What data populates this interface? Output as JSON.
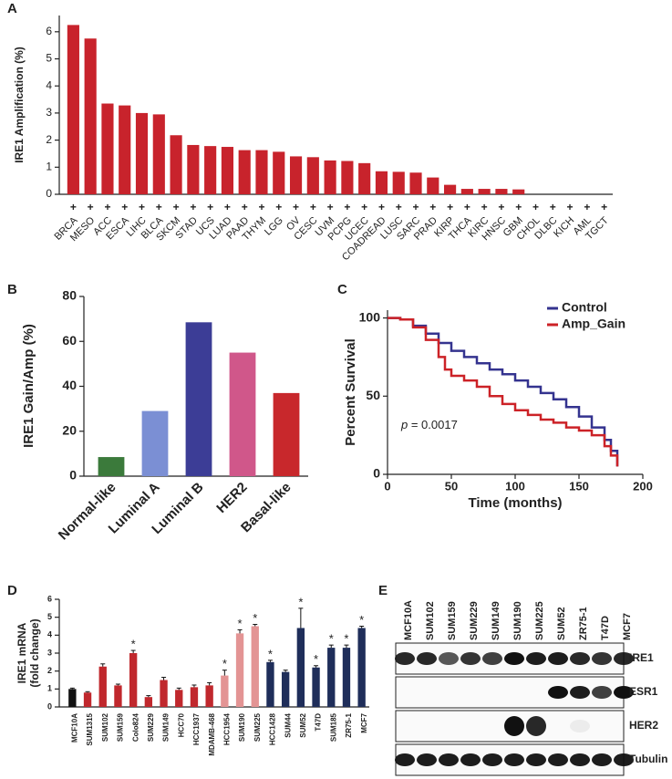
{
  "chart_data": [
    {
      "type": "bar",
      "panel_label": "A",
      "ylabel": "IRE1 Amplification (%)",
      "color": "#c8232c",
      "marker_label": "+",
      "categories": [
        "BRCA",
        "MESO",
        "ACC",
        "ESCA",
        "LIHC",
        "BLCA",
        "SKCM",
        "STAD",
        "UCS",
        "LUAD",
        "PAAD",
        "THYM",
        "LGG",
        "OV",
        "CESC",
        "UVM",
        "PCPG",
        "UCEC",
        "COADREAD",
        "LUSC",
        "SARC",
        "PRAD",
        "KIRP",
        "THCA",
        "KIRC",
        "HNSC",
        "GBM",
        "CHOL",
        "DLBC",
        "KICH",
        "AML",
        "TGCT"
      ],
      "values": [
        6.25,
        5.75,
        3.35,
        3.28,
        3.0,
        2.95,
        2.18,
        1.82,
        1.78,
        1.75,
        1.63,
        1.63,
        1.57,
        1.4,
        1.37,
        1.25,
        1.23,
        1.15,
        0.85,
        0.83,
        0.8,
        0.62,
        0.35,
        0.2,
        0.2,
        0.2,
        0.18,
        0,
        0,
        0,
        0,
        0
      ],
      "ylim": [
        0,
        6.6
      ],
      "yticks": [
        0,
        1,
        2,
        3,
        4,
        5,
        6
      ]
    },
    {
      "type": "bar",
      "panel_label": "B",
      "ylabel": "IRE1 Gain/Amp (%)",
      "categories": [
        "Normal-like",
        "Luminal A",
        "Luminal B",
        "HER2",
        "Basal-like"
      ],
      "values": [
        8.5,
        29,
        68.5,
        55,
        37
      ],
      "colors": [
        "#3b7a3b",
        "#7b8fd4",
        "#3c3d96",
        "#d0578a",
        "#c8282c"
      ],
      "ylim": [
        0,
        80
      ],
      "yticks": [
        0,
        20,
        40,
        60,
        80
      ]
    },
    {
      "type": "line",
      "panel_label": "C",
      "xlabel": "Time (months)",
      "ylabel": "Percent Survival",
      "annotation": {
        "italic": "p",
        "text": "= 0.0017"
      },
      "series": [
        {
          "name": "Control",
          "color": "#34338f",
          "x": [
            0,
            10,
            20,
            30,
            40,
            50,
            60,
            70,
            80,
            90,
            100,
            110,
            120,
            130,
            140,
            150,
            160,
            170,
            175,
            180
          ],
          "values": [
            100,
            99,
            95,
            90,
            84,
            79,
            75,
            71,
            67,
            64,
            60,
            56,
            52,
            48,
            43,
            37,
            30,
            22,
            15,
            5
          ]
        },
        {
          "name": "Amp_Gain",
          "color": "#cc2227",
          "x": [
            0,
            10,
            20,
            30,
            40,
            45,
            50,
            60,
            70,
            80,
            90,
            100,
            110,
            120,
            130,
            140,
            150,
            160,
            170,
            175,
            180
          ],
          "values": [
            100,
            99,
            94,
            86,
            75,
            67,
            63,
            60,
            56,
            50,
            45,
            41,
            38,
            35,
            33,
            30,
            28,
            25,
            18,
            12,
            5
          ]
        }
      ],
      "xlim": [
        0,
        200
      ],
      "xticks": [
        0,
        50,
        100,
        150,
        200
      ],
      "ylim": [
        0,
        105
      ],
      "yticks": [
        0,
        50,
        100
      ]
    },
    {
      "type": "errorbar",
      "panel_label": "D",
      "ylabel": [
        "IRE1 mRNA",
        "(fold change)"
      ],
      "categories": [
        "MCF10A",
        "SUM1315",
        "SUM102",
        "SUM159",
        "Colo824",
        "SUM229",
        "SUM149",
        "HCC70",
        "HCC1937",
        "MDAMB-468",
        "HCC1954",
        "SUM190",
        "SUM225",
        "HCC1428",
        "SUM44",
        "SUM52",
        "T47D",
        "SUM185",
        "ZR75-1",
        "MCF7"
      ],
      "values": [
        1.0,
        0.8,
        2.25,
        1.2,
        3.0,
        0.55,
        1.5,
        0.95,
        1.1,
        1.2,
        1.75,
        4.1,
        4.5,
        2.5,
        1.95,
        4.4,
        2.2,
        3.3,
        3.3,
        4.4
      ],
      "errors": [
        0.05,
        0.05,
        0.15,
        0.07,
        0.15,
        0.08,
        0.15,
        0.1,
        0.12,
        0.15,
        0.3,
        0.2,
        0.1,
        0.1,
        0.1,
        1.1,
        0.1,
        0.15,
        0.15,
        0.1
      ],
      "colors": [
        "#111111",
        "#c0282d",
        "#c0282d",
        "#c0282d",
        "#c0282d",
        "#c0282d",
        "#c0282d",
        "#c0282d",
        "#c0282d",
        "#c0282d",
        "#e39494",
        "#e39494",
        "#e39494",
        "#1f2e5a",
        "#1f2e5a",
        "#1f2e5a",
        "#1f2e5a",
        "#1f2e5a",
        "#1f2e5a",
        "#1f2e5a"
      ],
      "significance": [
        null,
        null,
        null,
        null,
        "*",
        null,
        null,
        null,
        null,
        null,
        "*",
        "*",
        "*",
        "*",
        null,
        "*",
        "*",
        "*",
        "*",
        "*"
      ],
      "ylim": [
        0,
        6
      ],
      "yticks": [
        0,
        1,
        2,
        3,
        4,
        5,
        6
      ]
    }
  ],
  "blot": {
    "panel_label": "E",
    "lanes": [
      "MCF10A",
      "SUM102",
      "SUM159",
      "SUM229",
      "SUM149",
      "SUM190",
      "SUM225",
      "SUM52",
      "ZR75-1",
      "T47D",
      "MCF7"
    ],
    "rows": [
      "IRE1",
      "ESR1",
      "HER2",
      "Tubulin"
    ]
  }
}
